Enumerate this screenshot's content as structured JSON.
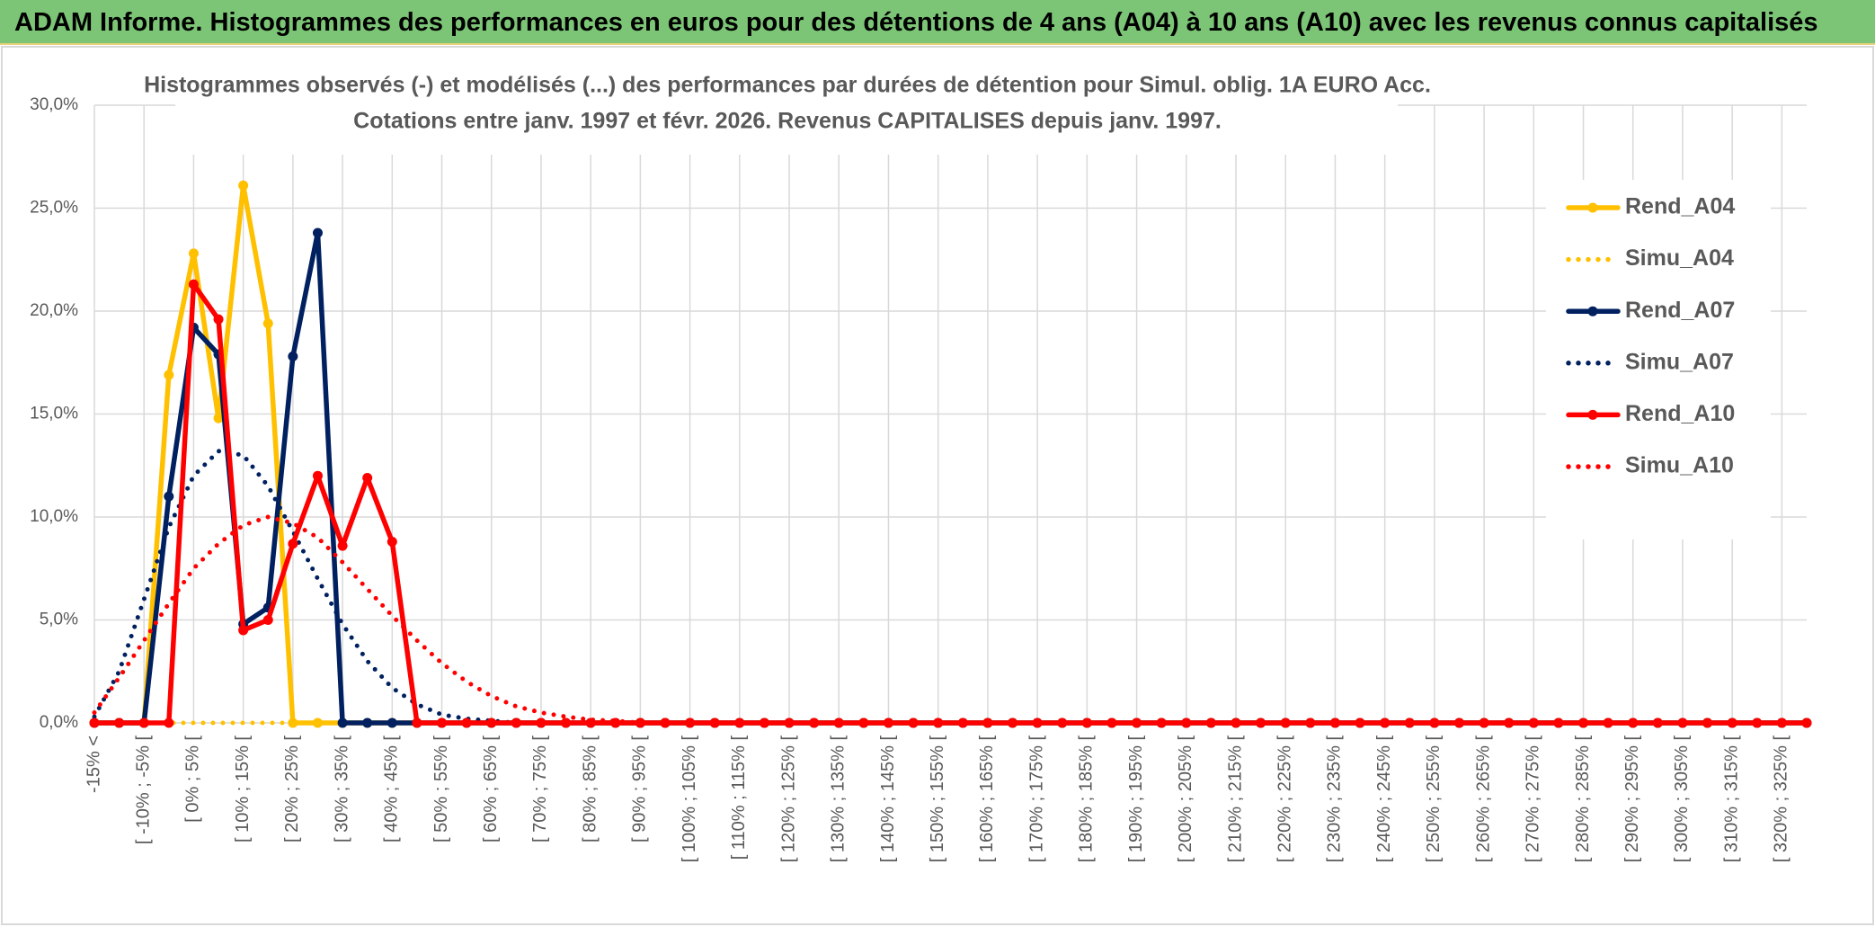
{
  "header": {
    "title": "ADAM Informe. Histogrammes des performances en euros pour des détentions de 4 ans (A04) à 10 ans (A10) avec les revenus connus capitalisés"
  },
  "chart_data": {
    "type": "line",
    "title": "Histogrammes observés (-) et modélisés (...) des performances par durées de détention pour Simul. oblig. 1A EURO Acc.",
    "subtitle": "Cotations entre janv. 1997 et févr. 2026. Revenus CAPITALISES depuis janv. 1997.",
    "categories": [
      "-15% <",
      null,
      "[ -10% ; -5% [",
      null,
      "[ 0% ; 5% [",
      null,
      "[ 10% ; 15% [",
      null,
      "[ 20% ; 25% [",
      null,
      "[ 30% ; 35% [",
      null,
      "[ 40% ; 45% [",
      null,
      "[ 50% ; 55% [",
      null,
      "[ 60% ; 65% [",
      null,
      "[ 70% ; 75% [",
      null,
      "[ 80% ; 85% [",
      null,
      "[ 90% ; 95% [",
      null,
      "[ 100% ; 105% [",
      null,
      "[ 110% ; 115% [",
      null,
      "[ 120% ; 125% [",
      null,
      "[ 130% ; 135% [",
      null,
      "[ 140% ; 145% [",
      null,
      "[ 150% ; 155% [",
      null,
      "[ 160% ; 165% [",
      null,
      "[ 170% ; 175% [",
      null,
      "[ 180% ; 185% [",
      null,
      "[ 190% ; 195% [",
      null,
      "[ 200% ; 205% [",
      null,
      "[ 210% ; 215% [",
      null,
      "[ 220% ; 225% [",
      null,
      "[ 230% ; 235% [",
      null,
      "[ 240% ; 245% [",
      null,
      "[ 250% ; 255% [",
      null,
      "[ 260% ; 265% [",
      null,
      "[ 270% ; 275% [",
      null,
      "[ 280% ; 285% [",
      null,
      "[ 290% ; 295% [",
      null,
      "[ 300% ; 305% [",
      null,
      "[ 310% ; 315% [",
      null,
      "[ 320% ; 325% [",
      null
    ],
    "series": [
      {
        "name": "Rend_A04",
        "color": "#ffc000",
        "line_style": "solid",
        "markers": true,
        "values": [
          0,
          0,
          0,
          16.9,
          22.8,
          14.8,
          26.1,
          19.4,
          0,
          0,
          0,
          0,
          0,
          0,
          0,
          0,
          0,
          0,
          0,
          0,
          0,
          0,
          0,
          0,
          0,
          0,
          0,
          0,
          0,
          0,
          0,
          0,
          0,
          0,
          0,
          0,
          0,
          0,
          0,
          0,
          0,
          0,
          0,
          0,
          0,
          0,
          0,
          0,
          0,
          0,
          0,
          0,
          0,
          0,
          0,
          0,
          0,
          0,
          0,
          0,
          0,
          0,
          0,
          0,
          0,
          0,
          0,
          0,
          0,
          0
        ]
      },
      {
        "name": "Simu_A04",
        "color": "#ffc000",
        "line_style": "dotted",
        "markers": false,
        "values": [
          0,
          0,
          0,
          0,
          0,
          0,
          0,
          0,
          0,
          0,
          0,
          0,
          0,
          0,
          0,
          0,
          0,
          0,
          0,
          0,
          0,
          0,
          0,
          0,
          0,
          0,
          0,
          0,
          0,
          0,
          0,
          0,
          0,
          0,
          0,
          0,
          0,
          0,
          0,
          0,
          0,
          0,
          0,
          0,
          0,
          0,
          0,
          0,
          0,
          0,
          0,
          0,
          0,
          0,
          0,
          0,
          0,
          0,
          0,
          0,
          0,
          0,
          0,
          0,
          0,
          0,
          0,
          0,
          0,
          0
        ]
      },
      {
        "name": "Rend_A07",
        "color": "#002060",
        "line_style": "solid",
        "markers": true,
        "values": [
          0,
          0,
          0,
          11.0,
          19.2,
          17.9,
          4.8,
          5.6,
          17.8,
          23.8,
          0,
          0,
          0,
          0,
          0,
          0,
          0,
          0,
          0,
          0,
          0,
          0,
          0,
          0,
          0,
          0,
          0,
          0,
          0,
          0,
          0,
          0,
          0,
          0,
          0,
          0,
          0,
          0,
          0,
          0,
          0,
          0,
          0,
          0,
          0,
          0,
          0,
          0,
          0,
          0,
          0,
          0,
          0,
          0,
          0,
          0,
          0,
          0,
          0,
          0,
          0,
          0,
          0,
          0,
          0,
          0,
          0,
          0,
          0,
          0
        ]
      },
      {
        "name": "Simu_A07",
        "color": "#002060",
        "line_style": "dotted",
        "markers": false,
        "values": [
          0.3,
          2.5,
          6.0,
          9.5,
          12.0,
          13.2,
          13.0,
          11.5,
          9.3,
          7.0,
          4.8,
          3.0,
          1.7,
          0.9,
          0.4,
          0.2,
          0.1,
          0,
          0,
          0,
          0,
          0,
          0,
          0,
          0,
          0,
          0,
          0,
          0,
          0,
          0,
          0,
          0,
          0,
          0,
          0,
          0,
          0,
          0,
          0,
          0,
          0,
          0,
          0,
          0,
          0,
          0,
          0,
          0,
          0,
          0,
          0,
          0,
          0,
          0,
          0,
          0,
          0,
          0,
          0,
          0,
          0,
          0,
          0,
          0,
          0,
          0,
          0,
          0,
          0
        ]
      },
      {
        "name": "Rend_A10",
        "color": "#ff0000",
        "line_style": "solid",
        "markers": true,
        "values": [
          0,
          0,
          0,
          0,
          21.3,
          19.6,
          4.5,
          5.0,
          8.7,
          12.0,
          8.6,
          11.9,
          8.8,
          0,
          0,
          0,
          0,
          0,
          0,
          0,
          0,
          0,
          0,
          0,
          0,
          0,
          0,
          0,
          0,
          0,
          0,
          0,
          0,
          0,
          0,
          0,
          0,
          0,
          0,
          0,
          0,
          0,
          0,
          0,
          0,
          0,
          0,
          0,
          0,
          0,
          0,
          0,
          0,
          0,
          0,
          0,
          0,
          0,
          0,
          0,
          0,
          0,
          0,
          0,
          0,
          0,
          0,
          0,
          0,
          0
        ]
      },
      {
        "name": "Simu_A10",
        "color": "#ff0000",
        "line_style": "dotted",
        "markers": false,
        "values": [
          0.5,
          2.2,
          4.0,
          5.8,
          7.5,
          8.7,
          9.6,
          10.0,
          9.7,
          9.0,
          7.8,
          6.5,
          5.2,
          4.0,
          2.9,
          2.0,
          1.3,
          0.8,
          0.5,
          0.3,
          0.15,
          0.1,
          0,
          0,
          0,
          0,
          0,
          0,
          0,
          0,
          0,
          0,
          0,
          0,
          0,
          0,
          0,
          0,
          0,
          0,
          0,
          0,
          0,
          0,
          0,
          0,
          0,
          0,
          0,
          0,
          0,
          0,
          0,
          0,
          0,
          0,
          0,
          0,
          0,
          0,
          0,
          0,
          0,
          0,
          0,
          0,
          0,
          0,
          0,
          0
        ]
      }
    ],
    "ylim": [
      0,
      30
    ],
    "yticks": [
      {
        "value": 0,
        "label": "0,0%"
      },
      {
        "value": 5,
        "label": "5,0%"
      },
      {
        "value": 10,
        "label": "10,0%"
      },
      {
        "value": 15,
        "label": "15,0%"
      },
      {
        "value": 20,
        "label": "20,0%"
      },
      {
        "value": 25,
        "label": "25,0%"
      },
      {
        "value": 30,
        "label": "30,0%"
      }
    ],
    "grid": true,
    "legend": "right"
  }
}
